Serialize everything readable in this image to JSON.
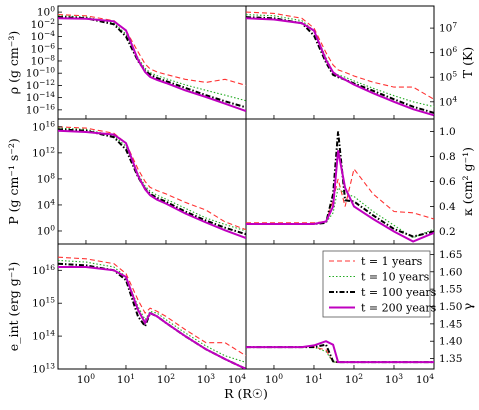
{
  "chart_data": {
    "type": "line",
    "layout": "3x2 panel grid, shared log x axis",
    "xlabel": "R (R☉)",
    "xscale": "log",
    "xlim": [
      0.2,
      10000
    ],
    "xticks": [
      "10^0",
      "10^1",
      "10^2",
      "10^3",
      "10^4"
    ],
    "x": [
      0.2,
      1,
      5,
      10,
      20,
      30,
      40,
      60,
      100,
      300,
      1000,
      3000,
      10000
    ],
    "legend": {
      "location": "lower-right panel, top-right",
      "entries": [
        "t = 1 years",
        "t = 10 years",
        "t = 100 years",
        "t = 200 years"
      ]
    },
    "colors": {
      "t1": "#ff3333",
      "t10": "#22aa22",
      "t100": "#000000",
      "t200": "#bf00bf"
    },
    "panels": [
      {
        "id": "rho",
        "ylabel": "ρ (g cm⁻³)",
        "yscale": "log",
        "ylim": [
          -17.5,
          1
        ],
        "yticks": [
          "10^0",
          "10^-2",
          "10^-4",
          "10^-6",
          "10^-8",
          "10^-10",
          "10^-12",
          "10^-14",
          "10^-16"
        ],
        "series": [
          {
            "name": "t = 1 years",
            "y_log10": [
              -0.4,
              -0.6,
              -1.4,
              -3.0,
              -6.5,
              -8.5,
              -9.3,
              -9.8,
              -10.2,
              -11.0,
              -11.5,
              -11.0,
              -12.0
            ]
          },
          {
            "name": "t = 10 years",
            "y_log10": [
              -0.6,
              -0.8,
              -1.8,
              -3.6,
              -7.5,
              -9.2,
              -9.9,
              -10.4,
              -10.9,
              -11.9,
              -12.8,
              -13.6,
              -14.5
            ]
          },
          {
            "name": "t = 100 years",
            "y_log10": [
              -0.8,
              -1.0,
              -2.0,
              -4.0,
              -8.0,
              -9.6,
              -10.2,
              -10.8,
              -11.3,
              -12.4,
              -13.6,
              -14.6,
              -15.6
            ]
          },
          {
            "name": "t = 200 years",
            "y_log10": [
              -1.0,
              -1.1,
              -1.5,
              -3.0,
              -7.8,
              -9.8,
              -10.6,
              -11.1,
              -11.6,
              -12.8,
              -13.9,
              -15.0,
              -16.2
            ]
          }
        ]
      },
      {
        "id": "T",
        "ylabel": "T (K)",
        "yscale": "log",
        "ylim": [
          3.3,
          7.9
        ],
        "yticks": [
          "10^4",
          "10^5",
          "10^6",
          "10^7"
        ],
        "series": [
          {
            "name": "t = 1 years",
            "y_log10": [
              7.65,
              7.6,
              7.4,
              7.0,
              6.0,
              5.5,
              5.3,
              5.2,
              5.05,
              4.8,
              4.6,
              4.6,
              4.1
            ]
          },
          {
            "name": "t = 10 years",
            "y_log10": [
              7.55,
              7.5,
              7.3,
              6.9,
              5.8,
              5.2,
              5.1,
              5.0,
              4.85,
              4.55,
              4.25,
              4.0,
              3.8
            ]
          },
          {
            "name": "t = 100 years",
            "y_log10": [
              7.45,
              7.4,
              7.2,
              6.7,
              5.6,
              5.1,
              5.0,
              4.9,
              4.75,
              4.45,
              4.1,
              3.8,
              3.55
            ]
          },
          {
            "name": "t = 200 years",
            "y_log10": [
              7.4,
              7.35,
              7.2,
              6.9,
              5.7,
              5.2,
              5.05,
              4.9,
              4.7,
              4.35,
              4.0,
              3.7,
              3.45
            ]
          }
        ]
      },
      {
        "id": "P",
        "ylabel": "P (g cm⁻¹ s⁻²)",
        "yscale": "log",
        "ylim": [
          -2,
          17.2
        ],
        "yticks": [
          "10^0",
          "10^4",
          "10^8",
          "10^12",
          "10^16"
        ],
        "series": [
          {
            "name": "t = 1 years",
            "y_log10": [
              16.0,
              15.8,
              15.0,
              13.5,
              9.5,
              7.6,
              6.7,
              6.2,
              5.7,
              4.4,
              3.2,
              1.4,
              0.2
            ]
          },
          {
            "name": "t = 10 years",
            "y_log10": [
              15.8,
              15.6,
              14.6,
              13.0,
              8.8,
              6.9,
              6.1,
              5.5,
              4.9,
              3.5,
              2.0,
              1.0,
              0.0
            ]
          },
          {
            "name": "t = 100 years",
            "y_log10": [
              15.6,
              15.4,
              14.4,
              12.5,
              8.3,
              6.5,
              5.7,
              5.1,
              4.5,
              3.0,
              1.6,
              0.5,
              -0.5
            ]
          },
          {
            "name": "t = 200 years",
            "y_log10": [
              15.4,
              15.2,
              14.8,
              13.5,
              8.5,
              6.4,
              5.5,
              4.8,
              4.2,
              2.7,
              1.3,
              0.1,
              -1.1
            ]
          }
        ]
      },
      {
        "id": "kappa",
        "ylabel": "κ (cm² g⁻¹)",
        "yscale": "linear",
        "ylim": [
          0.1,
          1.1
        ],
        "yticks": [
          "0.2",
          "0.4",
          "0.6",
          "0.8",
          "1.0"
        ],
        "series": [
          {
            "name": "t = 1 years",
            "y": [
              0.27,
              0.27,
              0.27,
              0.27,
              0.28,
              0.45,
              0.62,
              0.4,
              0.7,
              0.5,
              0.36,
              0.35,
              0.3
            ]
          },
          {
            "name": "t = 10 years",
            "y": [
              0.26,
              0.26,
              0.26,
              0.26,
              0.27,
              0.35,
              0.55,
              0.5,
              0.48,
              0.36,
              0.25,
              0.15,
              0.22
            ]
          },
          {
            "name": "t = 100 years",
            "y": [
              0.26,
              0.26,
              0.26,
              0.26,
              0.27,
              0.5,
              1.0,
              0.45,
              0.44,
              0.33,
              0.22,
              0.16,
              0.2
            ]
          },
          {
            "name": "t = 200 years",
            "y": [
              0.26,
              0.26,
              0.26,
              0.26,
              0.28,
              0.4,
              0.85,
              0.55,
              0.4,
              0.3,
              0.2,
              0.12,
              0.19
            ]
          }
        ]
      },
      {
        "id": "eint",
        "ylabel": "e_int (erg g⁻¹)",
        "yscale": "log",
        "ylim": [
          13.0,
          16.8
        ],
        "yticks": [
          "10^13",
          "10^14",
          "10^15",
          "10^16"
        ],
        "series": [
          {
            "name": "t = 1 years",
            "y_log10": [
              16.4,
              16.35,
              16.2,
              15.9,
              15.1,
              14.7,
              14.85,
              14.75,
              14.6,
              14.2,
              13.8,
              13.8,
              13.4
            ]
          },
          {
            "name": "t = 10 years",
            "y_log10": [
              16.3,
              16.25,
              16.1,
              15.8,
              14.9,
              14.5,
              14.75,
              14.7,
              14.5,
              14.1,
              13.7,
              13.4,
              13.2
            ]
          },
          {
            "name": "t = 100 years",
            "y_log10": [
              16.2,
              16.15,
              16.0,
              15.7,
              14.6,
              14.3,
              14.7,
              14.6,
              14.4,
              14.0,
              13.6,
              13.3,
              13.0
            ]
          },
          {
            "name": "t = 200 years",
            "y_log10": [
              16.1,
              16.1,
              16.0,
              15.8,
              14.8,
              14.4,
              14.7,
              14.6,
              14.4,
              14.0,
              13.6,
              13.3,
              13.0
            ]
          }
        ]
      },
      {
        "id": "gamma",
        "ylabel": "γ",
        "yscale": "linear",
        "ylim": [
          1.32,
          1.68
        ],
        "yticks": [
          "1.35",
          "1.40",
          "1.45",
          "1.50",
          "1.55",
          "1.60",
          "1.65"
        ],
        "series": [
          {
            "name": "t = 1 years",
            "y": [
              1.383,
              1.383,
              1.383,
              1.383,
              1.375,
              1.34,
              1.34,
              1.34,
              1.34,
              1.34,
              1.34,
              1.34,
              1.34
            ]
          },
          {
            "name": "t = 10 years",
            "y": [
              1.383,
              1.383,
              1.383,
              1.383,
              1.37,
              1.34,
              1.34,
              1.34,
              1.34,
              1.34,
              1.34,
              1.34,
              1.34
            ]
          },
          {
            "name": "t = 100 years",
            "y": [
              1.383,
              1.383,
              1.383,
              1.383,
              1.39,
              1.342,
              1.34,
              1.34,
              1.34,
              1.34,
              1.34,
              1.34,
              1.34
            ]
          },
          {
            "name": "t = 200 years",
            "y": [
              1.383,
              1.383,
              1.383,
              1.388,
              1.4,
              1.39,
              1.34,
              1.34,
              1.34,
              1.34,
              1.34,
              1.34,
              1.34
            ]
          }
        ]
      }
    ]
  }
}
